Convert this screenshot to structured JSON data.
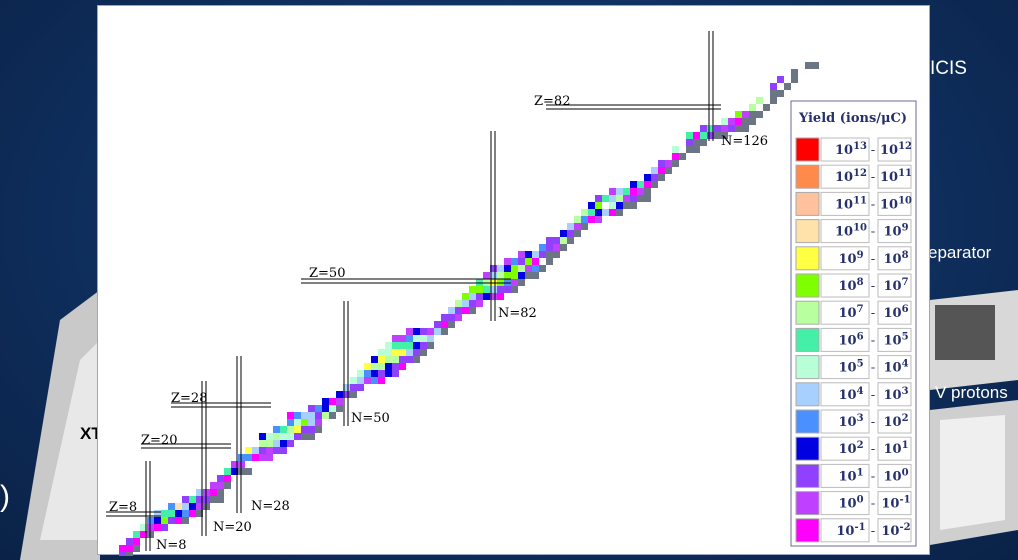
{
  "slide": {
    "fragments": {
      "top_right": "ICIS",
      "right_middle": "eparator",
      "right_lower": "V protons",
      "left_lower": "XT",
      "left_edge": ")"
    }
  },
  "chart": {
    "magic_labels": [
      "Z=8",
      "N=8",
      "Z=20",
      "N=20",
      "Z=28",
      "N=28",
      "Z=50",
      "N=50",
      "Z=82",
      "N=82",
      "N=126"
    ],
    "legend": {
      "title": "Yield (ions/μC)",
      "separator": "-",
      "rows": [
        {
          "color": "#ff0000",
          "high": {
            "base": "10",
            "exp": "13"
          },
          "low": {
            "base": "10",
            "exp": "12"
          }
        },
        {
          "color": "#ff8a4c",
          "high": {
            "base": "10",
            "exp": "12"
          },
          "low": {
            "base": "10",
            "exp": "11"
          }
        },
        {
          "color": "#ffc29c",
          "high": {
            "base": "10",
            "exp": "11"
          },
          "low": {
            "base": "10",
            "exp": "10"
          }
        },
        {
          "color": "#ffe2aa",
          "high": {
            "base": "10",
            "exp": "10"
          },
          "low": {
            "base": "10",
            "exp": "9"
          }
        },
        {
          "color": "#ffff44",
          "high": {
            "base": "10",
            "exp": "9"
          },
          "low": {
            "base": "10",
            "exp": "8"
          }
        },
        {
          "color": "#80ff00",
          "high": {
            "base": "10",
            "exp": "8"
          },
          "low": {
            "base": "10",
            "exp": "7"
          }
        },
        {
          "color": "#b8ffa0",
          "high": {
            "base": "10",
            "exp": "7"
          },
          "low": {
            "base": "10",
            "exp": "6"
          }
        },
        {
          "color": "#44f0a8",
          "high": {
            "base": "10",
            "exp": "6"
          },
          "low": {
            "base": "10",
            "exp": "5"
          }
        },
        {
          "color": "#b8ffd8",
          "high": {
            "base": "10",
            "exp": "5"
          },
          "low": {
            "base": "10",
            "exp": "4"
          }
        },
        {
          "color": "#a8d0ff",
          "high": {
            "base": "10",
            "exp": "4"
          },
          "low": {
            "base": "10",
            "exp": "3"
          }
        },
        {
          "color": "#4a90ff",
          "high": {
            "base": "10",
            "exp": "3"
          },
          "low": {
            "base": "10",
            "exp": "2"
          }
        },
        {
          "color": "#0000e0",
          "high": {
            "base": "10",
            "exp": "2"
          },
          "low": {
            "base": "10",
            "exp": "1"
          }
        },
        {
          "color": "#9040ff",
          "high": {
            "base": "10",
            "exp": "1"
          },
          "low": {
            "base": "10",
            "exp": "0"
          }
        },
        {
          "color": "#c040ff",
          "high": {
            "base": "10",
            "exp": "0"
          },
          "low": {
            "base": "10",
            "exp": "-1"
          }
        },
        {
          "color": "#ff00ff",
          "high": {
            "base": "10",
            "exp": "-1"
          },
          "low": {
            "base": "10",
            "exp": "-2"
          }
        }
      ]
    }
  }
}
